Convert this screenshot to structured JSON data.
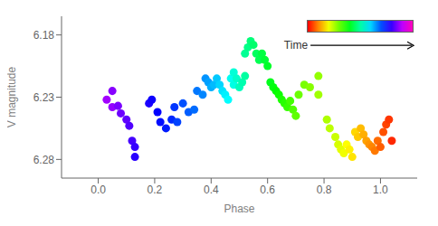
{
  "chart_data": {
    "type": "scatter",
    "xlabel": "Phase",
    "ylabel": "V magnitude",
    "xlim": [
      -0.13,
      1.13
    ],
    "ylim": [
      6.295,
      6.165
    ],
    "xticks": [
      {
        "value": 0.0,
        "label": "0.0"
      },
      0.2,
      0.4,
      0.6,
      0.8,
      {
        "value": 1.0,
        "label": "1.0"
      }
    ],
    "yticks": [
      6.18,
      6.23,
      6.28
    ],
    "grid": false,
    "colorbar_label": "Time",
    "colorbar_range": [
      0,
      1
    ],
    "x": [
      0.03,
      0.05,
      0.05,
      0.07,
      0.08,
      0.1,
      0.11,
      0.12,
      0.13,
      0.13,
      0.18,
      0.19,
      0.21,
      0.22,
      0.24,
      0.26,
      0.27,
      0.28,
      0.3,
      0.32,
      0.34,
      0.35,
      0.37,
      0.38,
      0.39,
      0.4,
      0.41,
      0.42,
      0.43,
      0.44,
      0.45,
      0.46,
      0.47,
      0.48,
      0.48,
      0.49,
      0.5,
      0.51,
      0.52,
      0.52,
      0.53,
      0.54,
      0.55,
      0.56,
      0.57,
      0.58,
      0.59,
      0.6,
      0.61,
      0.62,
      0.63,
      0.64,
      0.65,
      0.66,
      0.67,
      0.68,
      0.69,
      0.7,
      0.71,
      0.73,
      0.75,
      0.78,
      0.78,
      0.81,
      0.82,
      0.84,
      0.85,
      0.86,
      0.87,
      0.88,
      0.89,
      0.9,
      0.91,
      0.92,
      0.93,
      0.94,
      0.95,
      0.96,
      0.97,
      0.98,
      0.99,
      1.0,
      1.01,
      1.02,
      1.03,
      1.04
    ],
    "values": [
      6.232,
      6.238,
      6.225,
      6.237,
      6.243,
      6.248,
      6.253,
      6.265,
      6.27,
      6.278,
      6.235,
      6.232,
      6.242,
      6.25,
      6.255,
      6.248,
      6.238,
      6.25,
      6.235,
      6.242,
      6.24,
      6.225,
      6.228,
      6.215,
      6.218,
      6.222,
      6.22,
      6.215,
      6.22,
      6.225,
      6.228,
      6.232,
      6.215,
      6.22,
      6.21,
      6.215,
      6.222,
      6.218,
      6.213,
      6.195,
      6.19,
      6.185,
      6.188,
      6.195,
      6.2,
      6.195,
      6.2,
      6.205,
      6.218,
      6.222,
      6.225,
      6.228,
      6.232,
      6.235,
      6.238,
      6.233,
      6.24,
      6.245,
      6.228,
      6.22,
      6.222,
      6.213,
      6.228,
      6.248,
      6.255,
      6.262,
      6.268,
      6.272,
      6.275,
      6.268,
      6.272,
      6.278,
      6.258,
      6.262,
      6.255,
      6.26,
      6.265,
      6.268,
      6.27,
      6.273,
      6.265,
      6.27,
      6.258,
      6.252,
      6.248,
      6.265
    ],
    "time": [
      0.88,
      0.87,
      0.86,
      0.85,
      0.84,
      0.83,
      0.82,
      0.81,
      0.8,
      0.79,
      0.78,
      0.77,
      0.76,
      0.75,
      0.74,
      0.73,
      0.72,
      0.71,
      0.7,
      0.69,
      0.68,
      0.67,
      0.66,
      0.65,
      0.64,
      0.63,
      0.62,
      0.61,
      0.6,
      0.59,
      0.58,
      0.57,
      0.56,
      0.55,
      0.54,
      0.53,
      0.52,
      0.51,
      0.5,
      0.49,
      0.48,
      0.47,
      0.46,
      0.45,
      0.44,
      0.43,
      0.42,
      0.41,
      0.4,
      0.39,
      0.38,
      0.37,
      0.36,
      0.35,
      0.34,
      0.33,
      0.32,
      0.31,
      0.3,
      0.29,
      0.28,
      0.27,
      0.26,
      0.25,
      0.24,
      0.23,
      0.22,
      0.21,
      0.2,
      0.19,
      0.18,
      0.17,
      0.16,
      0.15,
      0.14,
      0.13,
      0.12,
      0.11,
      0.1,
      0.09,
      0.08,
      0.07,
      0.06,
      0.05,
      0.04,
      0.03
    ]
  }
}
